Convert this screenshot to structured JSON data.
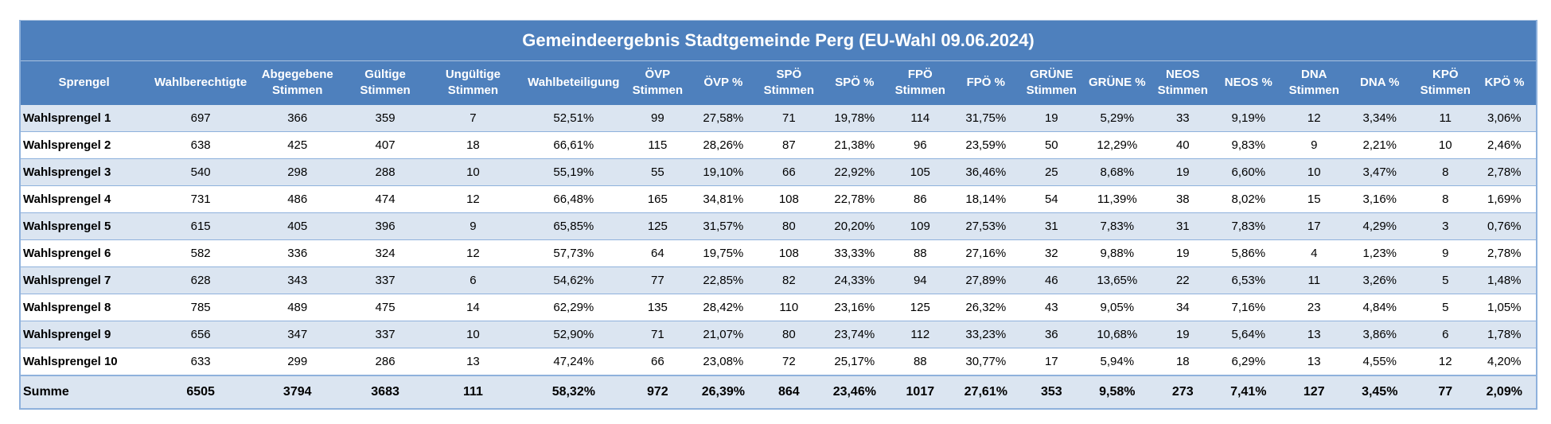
{
  "title": "Gemeindeergebnis Stadtgemeinde Perg (EU-Wahl 09.06.2024)",
  "columns": [
    [
      "Sprengel"
    ],
    [
      "Wahlberechtigte"
    ],
    [
      "Abgegebene",
      "Stimmen"
    ],
    [
      "Gültige",
      "Stimmen"
    ],
    [
      "Ungültige",
      "Stimmen"
    ],
    [
      "Wahlbeteiligung"
    ],
    [
      "ÖVP",
      "Stimmen"
    ],
    [
      "ÖVP %"
    ],
    [
      "SPÖ",
      "Stimmen"
    ],
    [
      "SPÖ %"
    ],
    [
      "FPÖ",
      "Stimmen"
    ],
    [
      "FPÖ %"
    ],
    [
      "GRÜNE",
      "Stimmen"
    ],
    [
      "GRÜNE %"
    ],
    [
      "NEOS",
      "Stimmen"
    ],
    [
      "NEOS %"
    ],
    [
      "DNA",
      "Stimmen"
    ],
    [
      "DNA %"
    ],
    [
      "KPÖ",
      "Stimmen"
    ],
    [
      "KPÖ %"
    ]
  ],
  "rows": [
    [
      "Wahlsprengel 1",
      "697",
      "366",
      "359",
      "7",
      "52,51%",
      "99",
      "27,58%",
      "71",
      "19,78%",
      "114",
      "31,75%",
      "19",
      "5,29%",
      "33",
      "9,19%",
      "12",
      "3,34%",
      "11",
      "3,06%"
    ],
    [
      "Wahlsprengel 2",
      "638",
      "425",
      "407",
      "18",
      "66,61%",
      "115",
      "28,26%",
      "87",
      "21,38%",
      "96",
      "23,59%",
      "50",
      "12,29%",
      "40",
      "9,83%",
      "9",
      "2,21%",
      "10",
      "2,46%"
    ],
    [
      "Wahlsprengel 3",
      "540",
      "298",
      "288",
      "10",
      "55,19%",
      "55",
      "19,10%",
      "66",
      "22,92%",
      "105",
      "36,46%",
      "25",
      "8,68%",
      "19",
      "6,60%",
      "10",
      "3,47%",
      "8",
      "2,78%"
    ],
    [
      "Wahlsprengel 4",
      "731",
      "486",
      "474",
      "12",
      "66,48%",
      "165",
      "34,81%",
      "108",
      "22,78%",
      "86",
      "18,14%",
      "54",
      "11,39%",
      "38",
      "8,02%",
      "15",
      "3,16%",
      "8",
      "1,69%"
    ],
    [
      "Wahlsprengel 5",
      "615",
      "405",
      "396",
      "9",
      "65,85%",
      "125",
      "31,57%",
      "80",
      "20,20%",
      "109",
      "27,53%",
      "31",
      "7,83%",
      "31",
      "7,83%",
      "17",
      "4,29%",
      "3",
      "0,76%"
    ],
    [
      "Wahlsprengel 6",
      "582",
      "336",
      "324",
      "12",
      "57,73%",
      "64",
      "19,75%",
      "108",
      "33,33%",
      "88",
      "27,16%",
      "32",
      "9,88%",
      "19",
      "5,86%",
      "4",
      "1,23%",
      "9",
      "2,78%"
    ],
    [
      "Wahlsprengel 7",
      "628",
      "343",
      "337",
      "6",
      "54,62%",
      "77",
      "22,85%",
      "82",
      "24,33%",
      "94",
      "27,89%",
      "46",
      "13,65%",
      "22",
      "6,53%",
      "11",
      "3,26%",
      "5",
      "1,48%"
    ],
    [
      "Wahlsprengel 8",
      "785",
      "489",
      "475",
      "14",
      "62,29%",
      "135",
      "28,42%",
      "110",
      "23,16%",
      "125",
      "26,32%",
      "43",
      "9,05%",
      "34",
      "7,16%",
      "23",
      "4,84%",
      "5",
      "1,05%"
    ],
    [
      "Wahlsprengel 9",
      "656",
      "347",
      "337",
      "10",
      "52,90%",
      "71",
      "21,07%",
      "80",
      "23,74%",
      "112",
      "33,23%",
      "36",
      "10,68%",
      "19",
      "5,64%",
      "13",
      "3,86%",
      "6",
      "1,78%"
    ],
    [
      "Wahlsprengel 10",
      "633",
      "299",
      "286",
      "13",
      "47,24%",
      "66",
      "23,08%",
      "72",
      "25,17%",
      "88",
      "30,77%",
      "17",
      "5,94%",
      "18",
      "6,29%",
      "13",
      "4,55%",
      "12",
      "4,20%"
    ]
  ],
  "total": [
    "Summe",
    "6505",
    "3794",
    "3683",
    "111",
    "58,32%",
    "972",
    "26,39%",
    "864",
    "23,46%",
    "1017",
    "27,61%",
    "353",
    "9,58%",
    "273",
    "7,41%",
    "127",
    "3,45%",
    "77",
    "2,09%"
  ],
  "colors": {
    "header_bg": "#4e80bd",
    "header_text": "#ffffff",
    "row_band": "#dbe5f1",
    "row_plain": "#ffffff",
    "border": "#8eb1dc"
  }
}
